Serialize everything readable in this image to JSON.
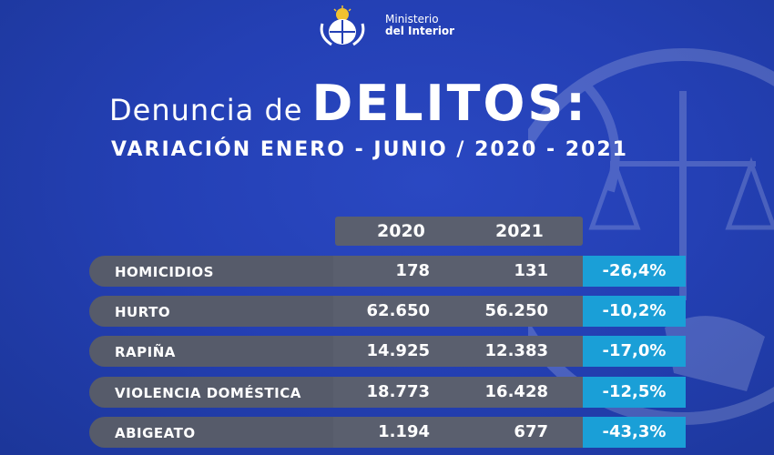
{
  "header": {
    "ministry_line1": "Ministerio",
    "ministry_line2": "del Interior"
  },
  "title_pre": "Denuncia de",
  "title_main": "DELITOS:",
  "subtitle": "VARIACIÓN ENERO - JUNIO / 2020 - 2021",
  "colors": {
    "background": "#2440b5",
    "row_gray": "#5a5f6e",
    "percent_blue": "#1a9fd7",
    "text": "#ffffff"
  },
  "chart_data": {
    "type": "table",
    "columns": [
      "2020",
      "2021"
    ],
    "rows": [
      {
        "label": "HOMICIDIOS",
        "y2020": "178",
        "y2021": "131",
        "change": "-26,4%"
      },
      {
        "label": "HURTO",
        "y2020": "62.650",
        "y2021": "56.250",
        "change": "-10,2%"
      },
      {
        "label": "RAPIÑA",
        "y2020": "14.925",
        "y2021": "12.383",
        "change": "-17,0%"
      },
      {
        "label": "VIOLENCIA DOMÉSTICA",
        "y2020": "18.773",
        "y2021": "16.428",
        "change": "-12,5%"
      },
      {
        "label": "ABIGEATO",
        "y2020": "1.194",
        "y2021": "677",
        "change": "-43,3%"
      }
    ]
  }
}
